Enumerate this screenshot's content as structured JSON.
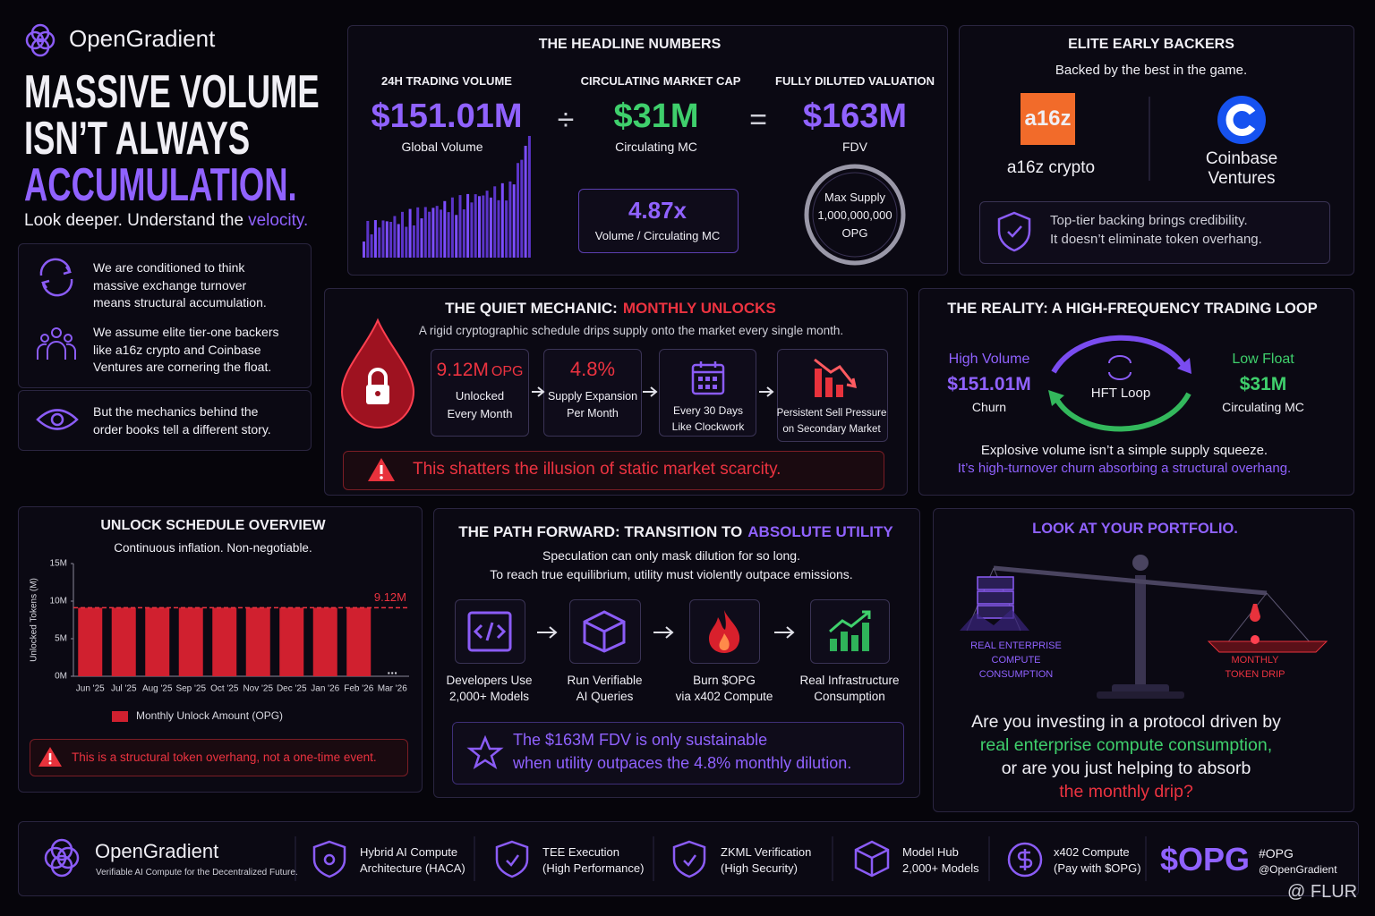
{
  "brand": {
    "name": "OpenGradient"
  },
  "hero": {
    "title_line1": "MASSIVE VOLUME",
    "title_line2": "ISN’T ALWAYS",
    "title_line3": "ACCUMULATION.",
    "subtitle": "Look deeper. Understand the",
    "subtitle_highlight": "velocity."
  },
  "beliefs": [
    "We are conditioned to think massive exchange turnover means structural accumulation.",
    "We assume elite tier-one backers like a16z crypto and Coinbase Ventures are cornering the float.",
    "But the mechanics behind the order books tell a different story."
  ],
  "headline": {
    "title": "THE HEADLINE NUMBERS",
    "operators": [
      "÷",
      "="
    ],
    "metrics": [
      {
        "label": "24H TRADING VOLUME",
        "value": "$151.01M",
        "caption": "Global Volume"
      },
      {
        "label": "CIRCULATING MARKET CAP",
        "value": "$31M",
        "caption": "Circulating MC"
      },
      {
        "label": "FULLY DILUTED VALUATION",
        "value": "$163M",
        "caption": "FDV"
      }
    ],
    "ratio": {
      "value": "4.87x",
      "caption": "Volume / Circulating MC"
    },
    "max_supply": {
      "label": "Max Supply",
      "value": "1,000,000,000",
      "unit": "OPG"
    }
  },
  "backers": {
    "title": "ELITE EARLY BACKERS",
    "subtitle": "Backed by the best in the game.",
    "items": [
      {
        "logo": "a16z",
        "name": "a16z crypto"
      },
      {
        "name": "Coinbase Ventures"
      }
    ],
    "note_line1": "Top-tier backing brings credibility.",
    "note_line2": "It doesn’t eliminate token overhang."
  },
  "unlocks": {
    "title": "THE QUIET MECHANIC:",
    "title_highlight": "MONTHLY UNLOCKS",
    "subtitle": "A rigid cryptographic schedule drips supply onto the market every single month.",
    "steps": [
      {
        "value": "9.12M",
        "unit": "OPG",
        "caption_line1": "Unlocked",
        "caption_line2": "Every Month"
      },
      {
        "value": "4.8%",
        "caption_line1": "Supply Expansion",
        "caption_line2": "Per Month"
      },
      {
        "caption_line1": "Every 30 Days",
        "caption_line2": "Like Clockwork"
      },
      {
        "caption_line1": "Persistent Sell Pressure",
        "caption_line2": "on Secondary Market"
      }
    ],
    "warning": "This shatters the illusion of static market scarcity."
  },
  "reality": {
    "title": "THE REALITY: A HIGH-FREQUENCY TRADING LOOP",
    "left": {
      "label": "High Volume",
      "value": "$151.01M",
      "caption": "Churn"
    },
    "center": "HFT Loop",
    "right": {
      "label": "Low Float",
      "value": "$31M",
      "caption": "Circulating MC"
    },
    "line1": "Explosive volume isn’t a simple supply squeeze.",
    "line2": "It’s high-turnover churn absorbing a structural overhang."
  },
  "schedule": {
    "title": "UNLOCK SCHEDULE OVERVIEW",
    "subtitle": "Continuous inflation. Non-negotiable.",
    "warning": "This is a structural token overhang, not a one-time event."
  },
  "chart_data": {
    "type": "bar",
    "y_label": "Unlocked Tokens (M)",
    "categories": [
      "Jun '25",
      "Jul '25",
      "Aug '25",
      "Sep '25",
      "Oct '25",
      "Nov '25",
      "Dec '25",
      "Jan '26",
      "Feb '26",
      "Mar '26"
    ],
    "series": [
      {
        "name": "Monthly Unlock Amount (OPG)",
        "color": "#d0202f",
        "values": [
          9.12,
          9.12,
          9.12,
          9.12,
          9.12,
          9.12,
          9.12,
          9.12,
          9.12,
          null
        ]
      }
    ],
    "gap_label": "...",
    "reference_line": {
      "value": 9.12,
      "label": "9.12M"
    },
    "ylim": [
      0,
      15
    ],
    "yticks": [
      {
        "value": 0,
        "label": "0M"
      },
      {
        "value": 5,
        "label": "5M"
      },
      {
        "value": 10,
        "label": "10M"
      },
      {
        "value": 15,
        "label": "15M"
      }
    ]
  },
  "path_forward": {
    "title": "THE PATH FORWARD: TRANSITION TO",
    "title_highlight": "ABSOLUTE UTILITY",
    "line1": "Speculation can only mask dilution for so long.",
    "line2": "To reach true equilibrium, utility must violently outpace emissions.",
    "steps": [
      [
        "Developers Use",
        "2,000+ Models"
      ],
      [
        "Run Verifiable",
        "AI Queries"
      ],
      [
        "Burn $OPG",
        "via x402 Compute"
      ],
      [
        "Real Infrastructure",
        "Consumption"
      ]
    ],
    "callout_line1": "The $163M FDV is only sustainable",
    "callout_line2": "when utility outpaces the 4.8% monthly dilution."
  },
  "portfolio": {
    "title": "LOOK AT YOUR PORTFOLIO.",
    "left_label": [
      "REAL ENTERPRISE",
      "COMPUTE",
      "CONSUMPTION"
    ],
    "right_label": [
      "MONTHLY",
      "TOKEN DRIP"
    ],
    "q1": "Are you investing in a protocol driven by",
    "q2": "real enterprise compute consumption,",
    "q3": "or are you just helping to absorb",
    "q4": "the monthly drip?"
  },
  "footer": {
    "brand": "OpenGradient",
    "tagline": "Verifiable AI Compute for the Decentralized Future.",
    "features": [
      [
        "Hybrid AI Compute",
        "Architecture (HACA)"
      ],
      [
        "TEE Execution",
        "(High Performance)"
      ],
      [
        "ZKML Verification",
        "(High Security)"
      ],
      [
        "Model Hub",
        "2,000+ Models"
      ],
      [
        "x402 Compute",
        "(Pay with $OPG)"
      ]
    ],
    "ticker": "$OPG",
    "hashtag": "#OPG",
    "handle": "@OpenGradient",
    "watermark": "@ FLUR"
  }
}
